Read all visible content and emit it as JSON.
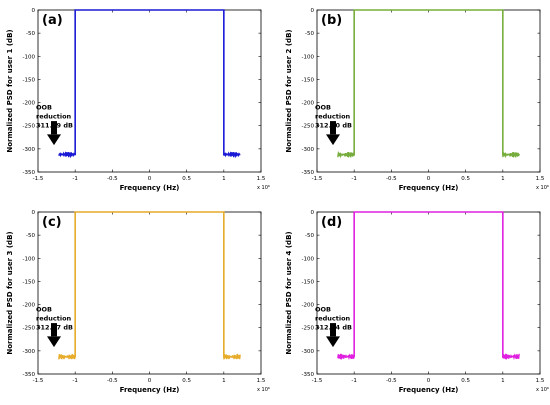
{
  "chart_data": [
    {
      "type": "line",
      "panel_label": "(a)",
      "xlabel": "Frequency (Hz)",
      "ylabel": "Normalized PSD for user 1 (dB)",
      "x_exponent_label": "x 10⁶",
      "xlim": [
        -1.5,
        1.5
      ],
      "ylim": [
        -350,
        0
      ],
      "xticks": [
        "-1.5",
        "-1",
        "-0.5",
        "0",
        "0.5",
        "1",
        "1.5"
      ],
      "yticks": [
        "0",
        "-50",
        "-100",
        "-150",
        "-200",
        "-250",
        "-300",
        "-350"
      ],
      "annotation": [
        "OOB",
        "reduction",
        "311.99 dB"
      ],
      "color": "#1a1ad6",
      "series": [
        {
          "x": [
            -1.22,
            -1.05,
            -1.0,
            -1.0,
            1.0,
            1.0,
            1.05,
            1.22
          ],
          "y": [
            -311.99,
            -311.99,
            -311.99,
            0,
            0,
            -311.99,
            -311.99,
            -311.99
          ]
        }
      ]
    },
    {
      "type": "line",
      "panel_label": "(b)",
      "xlabel": "Frequency (Hz)",
      "ylabel": "Normalized PSD for user 2 (dB)",
      "x_exponent_label": "x 10⁶",
      "xlim": [
        -1.5,
        1.5
      ],
      "ylim": [
        -350,
        0
      ],
      "xticks": [
        "-1.5",
        "-1",
        "-0.5",
        "0",
        "0.5",
        "1",
        "1.5"
      ],
      "yticks": [
        "0",
        "-50",
        "-100",
        "-150",
        "-200",
        "-250",
        "-300",
        "-350"
      ],
      "annotation": [
        "OOB",
        "reduction",
        "312.40 dB"
      ],
      "color": "#77ad3c",
      "series": [
        {
          "x": [
            -1.22,
            -1.05,
            -1.0,
            -1.0,
            1.0,
            1.0,
            1.05,
            1.22
          ],
          "y": [
            -312.4,
            -312.4,
            -312.4,
            0,
            0,
            -312.4,
            -312.4,
            -312.4
          ]
        }
      ]
    },
    {
      "type": "line",
      "panel_label": "(c)",
      "xlabel": "Frequency (Hz)",
      "ylabel": "Normalized PSD for user 3 (dB)",
      "x_exponent_label": "x 10⁶",
      "xlim": [
        -1.5,
        1.5
      ],
      "ylim": [
        -350,
        0
      ],
      "xticks": [
        "-1.5",
        "-1",
        "-0.5",
        "0",
        "0.5",
        "1",
        "1.5"
      ],
      "yticks": [
        "0",
        "-50",
        "-100",
        "-150",
        "-200",
        "-250",
        "-300",
        "-350"
      ],
      "annotation": [
        "OOB",
        "reduction",
        "312.67 dB"
      ],
      "color": "#e6ac2a",
      "series": [
        {
          "x": [
            -1.22,
            -1.05,
            -1.0,
            -1.0,
            1.0,
            1.0,
            1.05,
            1.22
          ],
          "y": [
            -312.67,
            -312.67,
            -312.67,
            0,
            0,
            -312.67,
            -312.67,
            -312.67
          ]
        }
      ]
    },
    {
      "type": "line",
      "panel_label": "(d)",
      "xlabel": "Frequency (Hz)",
      "ylabel": "Normalized PSD for user 4 (dB)",
      "x_exponent_label": "x 10⁶",
      "xlim": [
        -1.5,
        1.5
      ],
      "ylim": [
        -350,
        0
      ],
      "xticks": [
        "-1.5",
        "-1",
        "-0.5",
        "0",
        "0.5",
        "1",
        "1.5"
      ],
      "yticks": [
        "0",
        "-50",
        "-100",
        "-150",
        "-200",
        "-250",
        "-300",
        "-350"
      ],
      "annotation": [
        "OOB",
        "reduction",
        "312.34 dB"
      ],
      "color": "#e020e0",
      "series": [
        {
          "x": [
            -1.22,
            -1.05,
            -1.0,
            -1.0,
            1.0,
            1.0,
            1.05,
            1.22
          ],
          "y": [
            -312.34,
            -312.34,
            -312.34,
            0,
            0,
            -312.34,
            -312.34,
            -312.34
          ]
        }
      ]
    }
  ]
}
